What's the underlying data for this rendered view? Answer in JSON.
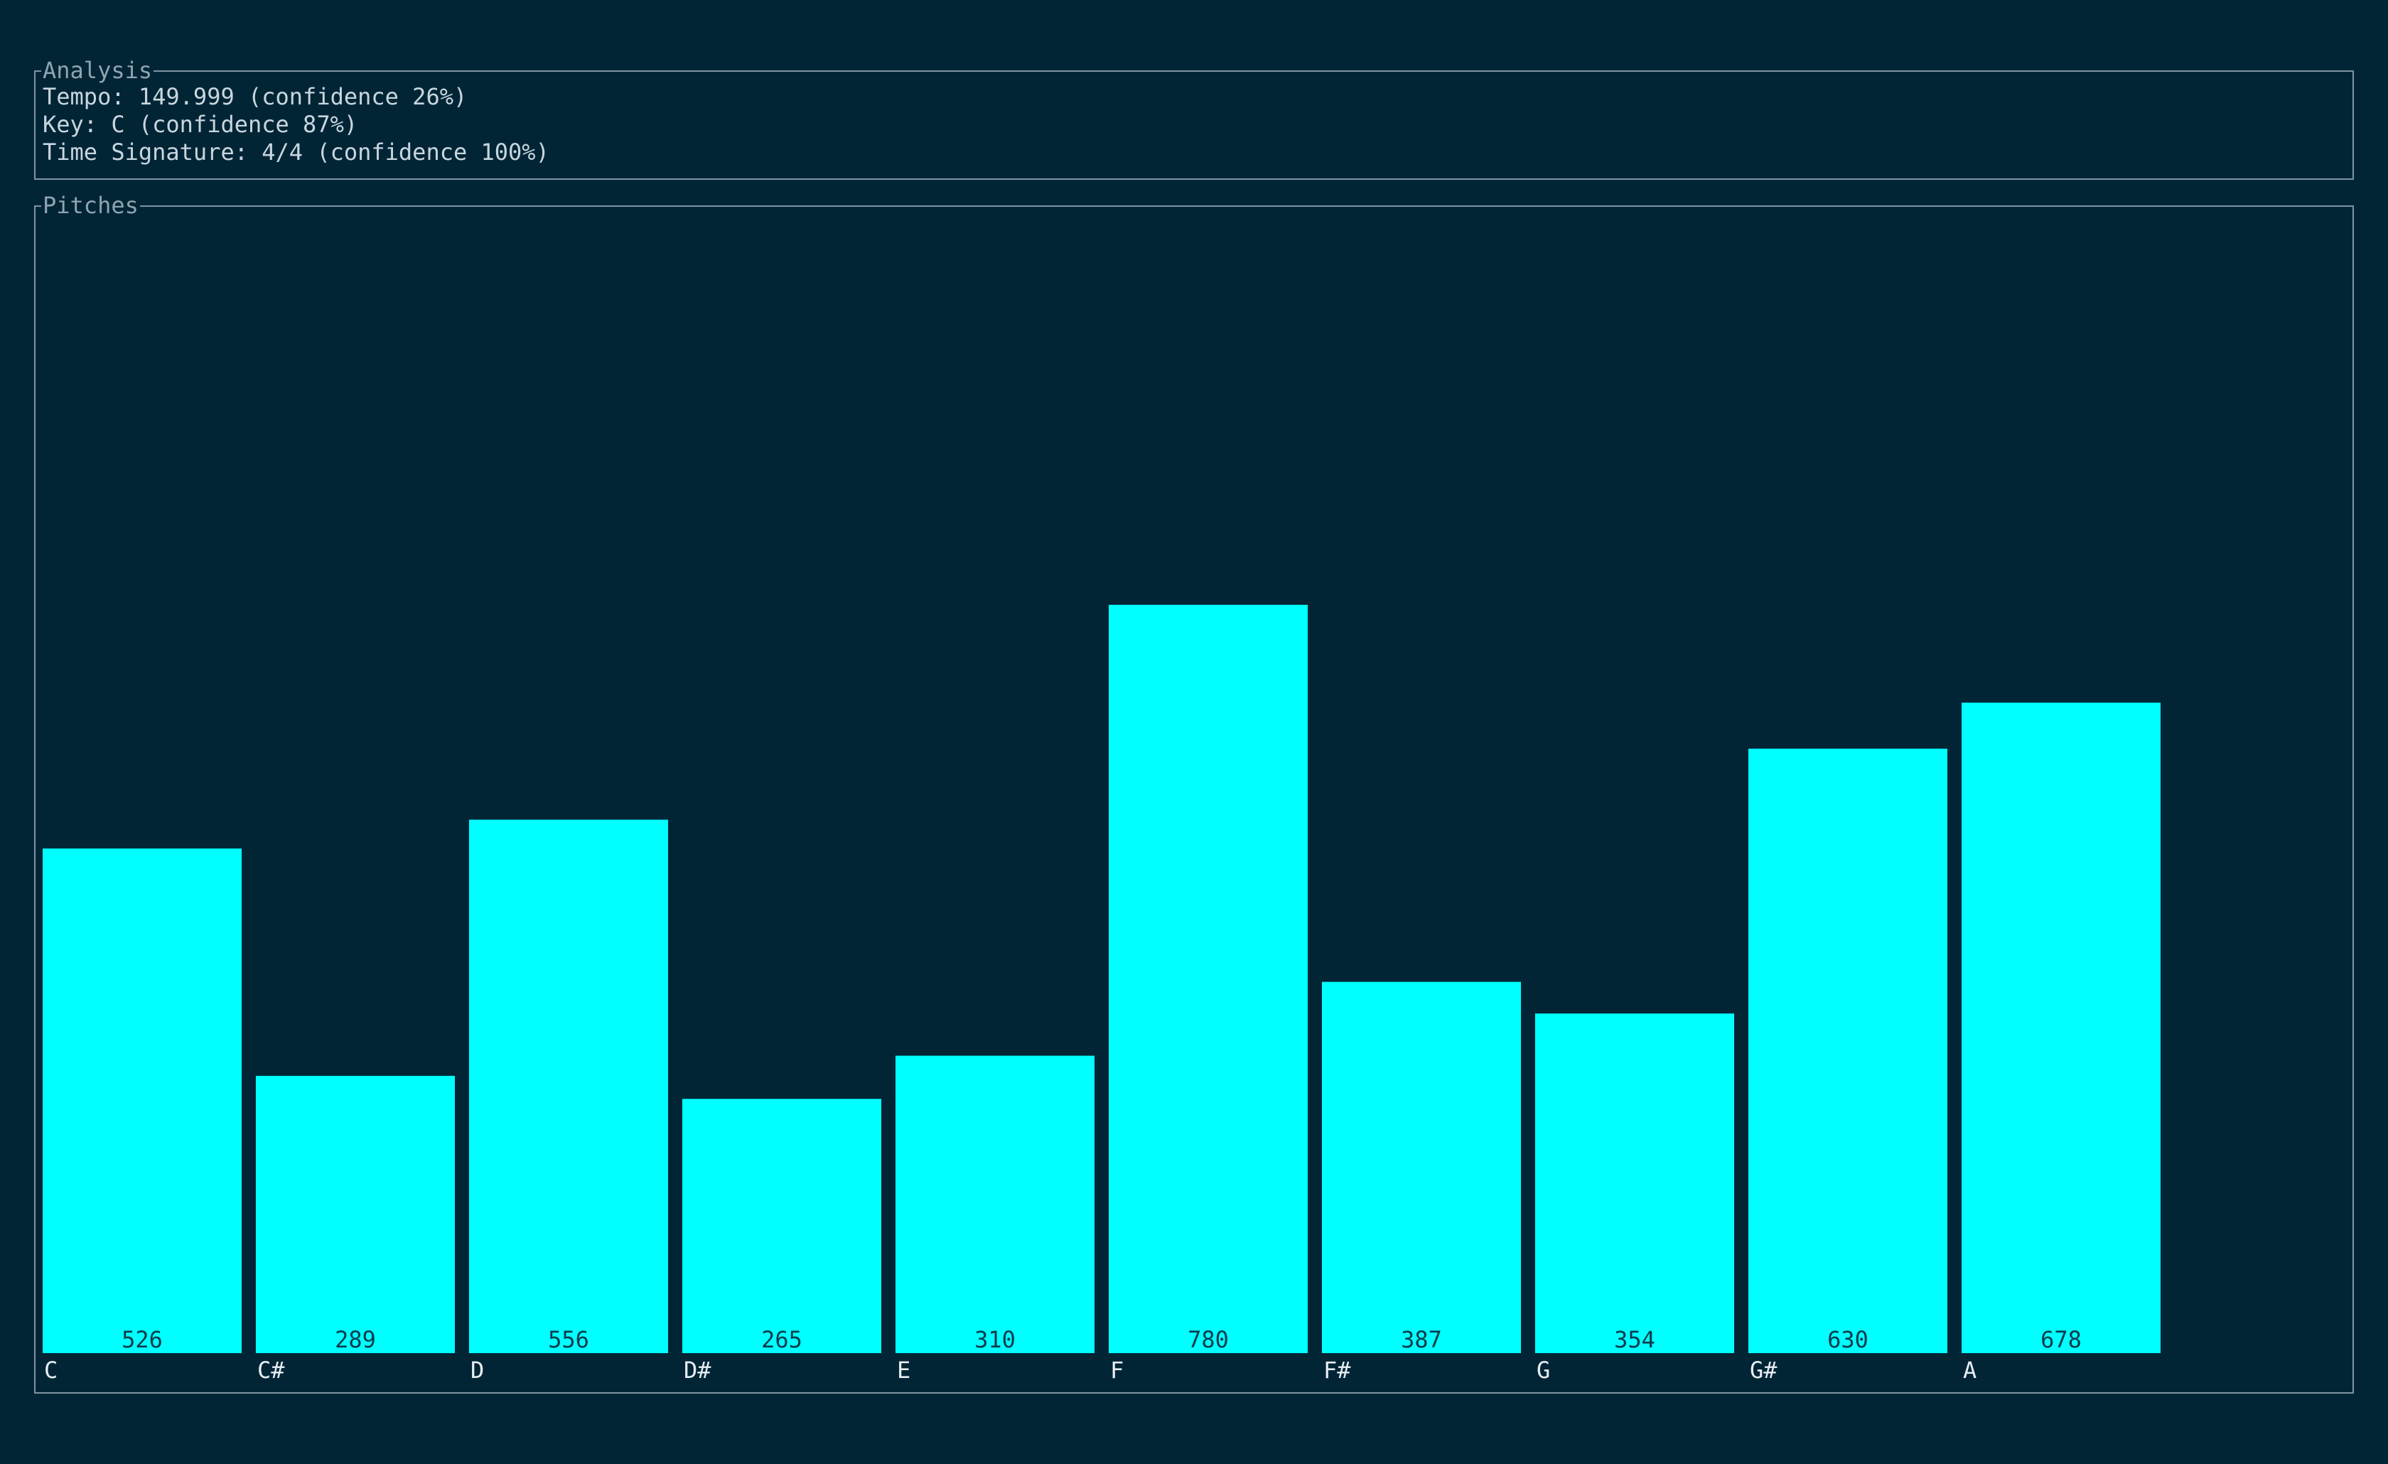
{
  "analysis": {
    "title": "Analysis",
    "tempo": "Tempo: 149.999 (confidence 26%)",
    "key": "Key: C (confidence 87%)",
    "time_signature": "Time Signature: 4/4 (confidence 100%)"
  },
  "pitches": {
    "title": "Pitches"
  },
  "colors": {
    "background": "#022536",
    "bar": "#00ffff",
    "bar_value_text": "#0b3a4a",
    "label_text": "#e6eef2",
    "border": "#7f94a1"
  },
  "chart_data": {
    "type": "bar",
    "categories": [
      "C",
      "C#",
      "D",
      "D#",
      "E",
      "F",
      "F#",
      "G",
      "G#",
      "A"
    ],
    "values": [
      526,
      289,
      556,
      265,
      310,
      780,
      387,
      354,
      630,
      678
    ],
    "ylim": [
      0,
      1180
    ],
    "grid": false
  }
}
